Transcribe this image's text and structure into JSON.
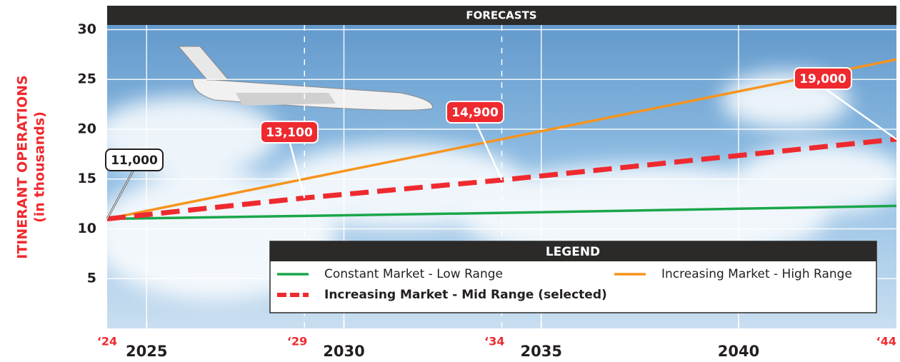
{
  "chart_data": {
    "type": "line",
    "title": "FORECASTS",
    "y_label": "ITINERANT OPERATIONS",
    "y_sublabel": "(in thousands)",
    "legend_title": "LEGEND",
    "x": [
      2024,
      2029,
      2034,
      2044
    ],
    "xlim": [
      2024,
      2044
    ],
    "xticks": [
      2025,
      2030,
      2035,
      2040
    ],
    "xticks_short": [
      {
        "value": 2024,
        "label": "‘24"
      },
      {
        "value": 2029,
        "label": "‘29"
      },
      {
        "value": 2034,
        "label": "‘34"
      },
      {
        "value": 2044,
        "label": "‘44"
      }
    ],
    "ylim": [
      0,
      32.4
    ],
    "yticks": [
      5,
      10,
      15,
      20,
      25,
      30
    ],
    "grid": true,
    "series": [
      {
        "name": "Constant Market - Low Range",
        "color": "#1aa64a",
        "style": "solid",
        "values": [
          11,
          11.3,
          11.6,
          12.3
        ]
      },
      {
        "name": "Increasing Market - High Range",
        "color": "#f7941d",
        "style": "solid",
        "values": [
          11,
          15,
          19,
          27
        ]
      },
      {
        "name": "Increasing Market - Mid Range (selected)",
        "color": "#ee2a2f",
        "style": "dashed",
        "values": [
          11,
          13.1,
          14.9,
          19
        ],
        "value_labels": [
          "11,000",
          "13,100",
          "14,900",
          "19,000"
        ]
      }
    ]
  }
}
